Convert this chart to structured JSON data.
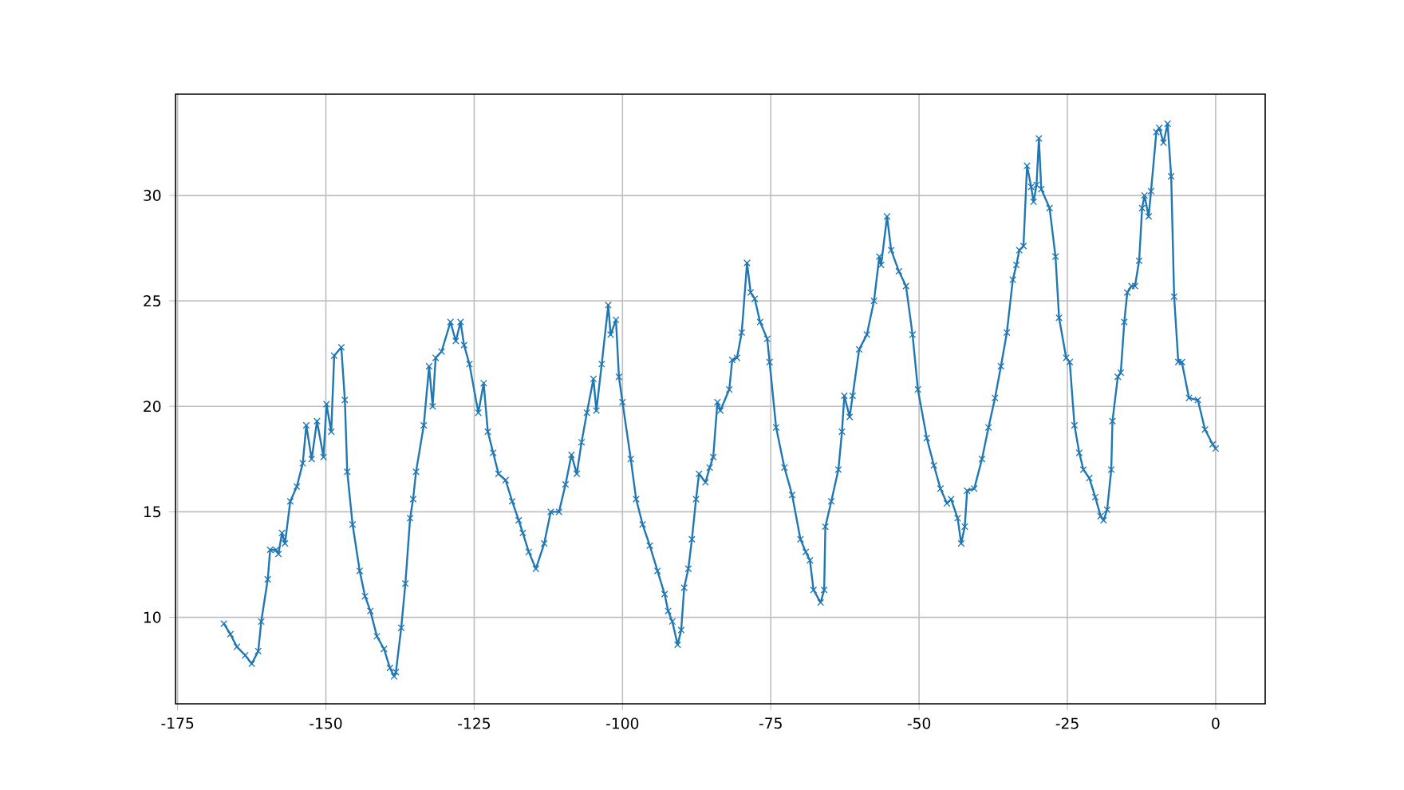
{
  "chart_data": {
    "type": "line",
    "marker": "cross",
    "line_style": "solid",
    "grid": true,
    "xlim": [
      -175.35,
      8.35
    ],
    "ylim": [
      5.9,
      34.8
    ],
    "xticks": [
      -175,
      -150,
      -125,
      -100,
      -75,
      -50,
      -25,
      0
    ],
    "yticks": [
      10,
      15,
      20,
      25,
      30
    ],
    "series": [
      {
        "color": "#1f77b4",
        "x": [
          -167.2,
          -166.1,
          -165.0,
          -163.6,
          -162.5,
          -161.4,
          -160.9,
          -159.8,
          -159.4,
          -158.4,
          -158.0,
          -157.4,
          -156.9,
          -156.0,
          -154.9,
          -153.9,
          -153.3,
          -152.4,
          -151.5,
          -150.4,
          -149.9,
          -149.1,
          -148.6,
          -147.4,
          -146.8,
          -146.4,
          -145.5,
          -144.3,
          -143.4,
          -142.5,
          -141.4,
          -140.2,
          -139.2,
          -138.5,
          -138.2,
          -137.3,
          -136.6,
          -135.8,
          -135.3,
          -134.8,
          -133.5,
          -132.6,
          -132.0,
          -131.5,
          -130.5,
          -129.0,
          -128.1,
          -127.3,
          -126.7,
          -125.8,
          -124.3,
          -123.4,
          -122.7,
          -121.8,
          -120.9,
          -119.7,
          -118.6,
          -117.5,
          -116.8,
          -115.8,
          -114.6,
          -113.2,
          -112.1,
          -110.7,
          -109.6,
          -108.6,
          -107.7,
          -106.9,
          -106.0,
          -104.9,
          -104.4,
          -103.5,
          -102.4,
          -102.0,
          -101.1,
          -100.6,
          -100.0,
          -98.6,
          -97.7,
          -96.6,
          -95.4,
          -94.1,
          -92.9,
          -92.3,
          -91.6,
          -90.7,
          -90.1,
          -89.6,
          -88.9,
          -88.3,
          -87.6,
          -87.1,
          -86.0,
          -85.3,
          -84.7,
          -84.0,
          -83.5,
          -82.0,
          -81.5,
          -80.7,
          -79.9,
          -79.0,
          -78.4,
          -77.7,
          -76.8,
          -75.6,
          -75.2,
          -74.1,
          -72.7,
          -71.4,
          -70.0,
          -69.1,
          -68.4,
          -67.8,
          -66.6,
          -66.0,
          -65.8,
          -64.8,
          -63.6,
          -63.0,
          -62.6,
          -61.7,
          -61.2,
          -60.1,
          -58.8,
          -57.6,
          -56.7,
          -56.4,
          -55.4,
          -54.7,
          -53.4,
          -52.2,
          -51.1,
          -50.2,
          -48.7,
          -47.5,
          -46.4,
          -45.3,
          -44.6,
          -43.5,
          -42.9,
          -42.3,
          -41.9,
          -40.7,
          -39.4,
          -38.3,
          -37.2,
          -36.2,
          -35.2,
          -34.2,
          -33.6,
          -33.1,
          -32.4,
          -31.8,
          -31.1,
          -30.7,
          -30.2,
          -29.8,
          -29.4,
          -28.0,
          -27.0,
          -26.4,
          -25.2,
          -24.6,
          -23.8,
          -23.0,
          -22.3,
          -21.3,
          -20.3,
          -19.4,
          -18.9,
          -18.3,
          -17.6,
          -17.4,
          -16.5,
          -16.0,
          -15.4,
          -14.9,
          -14.2,
          -13.6,
          -12.9,
          -12.4,
          -12.0,
          -11.3,
          -10.9,
          -10.0,
          -9.5,
          -8.8,
          -8.1,
          -7.5,
          -7.0,
          -6.3,
          -5.7,
          -4.5,
          -3.0,
          -1.8,
          -0.5,
          0.0
        ],
        "values": [
          9.7,
          9.2,
          8.6,
          8.2,
          7.8,
          8.4,
          9.8,
          11.8,
          13.2,
          13.2,
          13.0,
          14.0,
          13.5,
          15.5,
          16.2,
          17.3,
          19.1,
          17.5,
          19.3,
          17.6,
          20.1,
          18.8,
          22.4,
          22.8,
          20.3,
          16.9,
          14.4,
          12.2,
          11.0,
          10.3,
          9.1,
          8.5,
          7.6,
          7.2,
          7.4,
          9.5,
          11.6,
          14.7,
          15.6,
          16.9,
          19.1,
          21.9,
          20.0,
          22.3,
          22.6,
          24.0,
          23.1,
          24.0,
          22.9,
          22.0,
          19.7,
          21.1,
          18.8,
          17.8,
          16.8,
          16.5,
          15.5,
          14.6,
          14.0,
          13.1,
          12.3,
          13.5,
          15.0,
          15.0,
          16.3,
          17.7,
          16.8,
          18.3,
          19.7,
          21.3,
          19.8,
          22.0,
          24.8,
          23.4,
          24.1,
          21.4,
          20.2,
          17.5,
          15.6,
          14.4,
          13.4,
          12.2,
          11.1,
          10.3,
          9.8,
          8.7,
          9.4,
          11.4,
          12.3,
          13.7,
          15.6,
          16.8,
          16.4,
          17.1,
          17.6,
          20.2,
          19.8,
          20.8,
          22.2,
          22.3,
          23.5,
          26.8,
          25.4,
          25.1,
          24.0,
          23.2,
          22.1,
          19.0,
          17.1,
          15.8,
          13.7,
          13.1,
          12.7,
          11.3,
          10.7,
          11.3,
          14.3,
          15.5,
          17.0,
          18.8,
          20.5,
          19.5,
          20.5,
          22.7,
          23.4,
          25.0,
          27.1,
          26.7,
          29.0,
          27.4,
          26.4,
          25.7,
          23.4,
          20.8,
          18.5,
          17.2,
          16.1,
          15.4,
          15.6,
          14.7,
          13.5,
          14.3,
          16.0,
          16.1,
          17.5,
          19.0,
          20.4,
          21.9,
          23.5,
          26.0,
          26.7,
          27.4,
          27.6,
          31.4,
          30.4,
          29.7,
          30.5,
          32.7,
          30.3,
          29.4,
          27.1,
          24.2,
          22.3,
          22.1,
          19.1,
          17.8,
          17.0,
          16.6,
          15.7,
          14.8,
          14.6,
          15.1,
          17.0,
          19.3,
          21.4,
          21.6,
          24.0,
          25.4,
          25.7,
          25.7,
          26.9,
          29.4,
          30.0,
          29.0,
          30.2,
          33.0,
          33.2,
          32.5,
          33.4,
          30.9,
          25.2,
          22.1,
          22.1,
          20.4,
          20.3,
          18.9,
          18.2,
          18.0
        ]
      }
    ]
  }
}
